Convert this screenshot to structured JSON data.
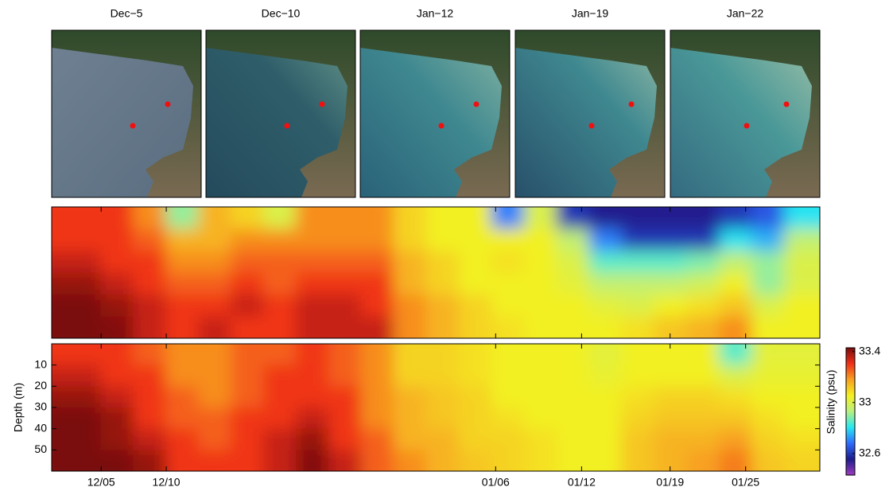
{
  "chart_data": {
    "type": "heatmap",
    "image_titles": [
      "Dec−5",
      "Dec−10",
      "Jan−12",
      "Jan−19",
      "Jan−22"
    ],
    "x": [
      0,
      2.5,
      5,
      7.5,
      10,
      12.5,
      15,
      17.5,
      20,
      22.5,
      25,
      27.5,
      30,
      32.5,
      35,
      37.5,
      40,
      42.5,
      45,
      47.5,
      50,
      52.5,
      55,
      57.5
    ],
    "xlim": [
      0,
      59
    ],
    "xticks": [
      {
        "value": 3.8,
        "label": "12/05"
      },
      {
        "value": 8.8,
        "label": "12/10"
      },
      {
        "value": 34.1,
        "label": "01/06"
      },
      {
        "value": 40.7,
        "label": "01/12"
      },
      {
        "value": 47.5,
        "label": "01/19"
      },
      {
        "value": 53.3,
        "label": "01/25"
      }
    ],
    "clim": [
      32.43,
      33.43
    ],
    "colormap": [
      "#a03cc0",
      "#1c1c8c",
      "#2f6cff",
      "#27e8f0",
      "#b8f080",
      "#f4f020",
      "#f8a020",
      "#f03018",
      "#7a0c0c"
    ],
    "colorbar_ticks": [
      33.4,
      33,
      32.6
    ],
    "colorbar_label": "Salinity (psu)",
    "panels": [
      {
        "values": [
          [
            33.3,
            33.3,
            33.35,
            33.4,
            33.45,
            33.45
          ],
          [
            33.3,
            33.3,
            33.35,
            33.4,
            33.45,
            33.45
          ],
          [
            33.3,
            33.3,
            33.3,
            33.35,
            33.4,
            33.42
          ],
          [
            33.2,
            33.25,
            33.3,
            33.3,
            33.35,
            33.35
          ],
          [
            32.9,
            33.15,
            33.2,
            33.25,
            33.3,
            33.3
          ],
          [
            33.15,
            33.15,
            33.2,
            33.25,
            33.3,
            33.35
          ],
          [
            33.1,
            33.2,
            33.25,
            33.3,
            33.35,
            33.3
          ],
          [
            33.0,
            33.2,
            33.25,
            33.25,
            33.3,
            33.3
          ],
          [
            33.2,
            33.2,
            33.25,
            33.3,
            33.35,
            33.35
          ],
          [
            33.2,
            33.2,
            33.25,
            33.3,
            33.35,
            33.35
          ],
          [
            33.2,
            33.2,
            33.25,
            33.3,
            33.3,
            33.35
          ],
          [
            33.1,
            33.1,
            33.15,
            33.15,
            33.2,
            33.2
          ],
          [
            33.05,
            33.05,
            33.1,
            33.1,
            33.15,
            33.15
          ],
          [
            33.05,
            33.05,
            33.05,
            33.05,
            33.1,
            33.1
          ],
          [
            32.7,
            33.05,
            33.08,
            33.05,
            33.05,
            33.08
          ],
          [
            33.0,
            33.05,
            33.05,
            33.05,
            33.05,
            33.05
          ],
          [
            32.6,
            32.95,
            33.0,
            33.02,
            33.05,
            33.05
          ],
          [
            32.55,
            32.7,
            32.85,
            32.95,
            33.02,
            33.05
          ],
          [
            32.55,
            32.6,
            32.85,
            32.95,
            33.0,
            33.08
          ],
          [
            32.55,
            32.6,
            32.85,
            32.95,
            33.05,
            33.12
          ],
          [
            32.55,
            32.6,
            32.88,
            32.98,
            33.08,
            33.15
          ],
          [
            32.6,
            32.8,
            32.95,
            33.05,
            33.12,
            33.2
          ],
          [
            32.65,
            32.75,
            32.9,
            32.9,
            33.0,
            33.05
          ],
          [
            32.8,
            32.95,
            33.0,
            33.0,
            33.05,
            33.05
          ]
        ]
      },
      {
        "y": [
          5,
          15,
          25,
          35,
          45,
          55
        ],
        "ylim": [
          0,
          60
        ],
        "yticks": [
          10,
          20,
          30,
          40,
          50
        ],
        "ylabel": "Depth (m)",
        "values": [
          [
            33.3,
            33.35,
            33.4,
            33.45,
            33.45,
            33.45
          ],
          [
            33.3,
            33.35,
            33.4,
            33.45,
            33.45,
            33.45
          ],
          [
            33.3,
            33.3,
            33.35,
            33.4,
            33.4,
            33.45
          ],
          [
            33.25,
            33.3,
            33.3,
            33.3,
            33.35,
            33.4
          ],
          [
            33.2,
            33.2,
            33.25,
            33.25,
            33.3,
            33.3
          ],
          [
            33.2,
            33.2,
            33.2,
            33.25,
            33.25,
            33.3
          ],
          [
            33.25,
            33.25,
            33.25,
            33.3,
            33.3,
            33.3
          ],
          [
            33.25,
            33.3,
            33.3,
            33.3,
            33.35,
            33.35
          ],
          [
            33.3,
            33.3,
            33.3,
            33.35,
            33.4,
            33.42
          ],
          [
            33.25,
            33.25,
            33.3,
            33.3,
            33.3,
            33.35
          ],
          [
            33.2,
            33.2,
            33.2,
            33.2,
            33.25,
            33.25
          ],
          [
            33.1,
            33.1,
            33.15,
            33.15,
            33.15,
            33.2
          ],
          [
            33.1,
            33.1,
            33.12,
            33.12,
            33.15,
            33.15
          ],
          [
            33.08,
            33.08,
            33.1,
            33.1,
            33.1,
            33.12
          ],
          [
            33.05,
            33.05,
            33.05,
            33.08,
            33.1,
            33.1
          ],
          [
            33.05,
            33.05,
            33.05,
            33.05,
            33.08,
            33.08
          ],
          [
            33.05,
            33.05,
            33.05,
            33.05,
            33.05,
            33.05
          ],
          [
            33.02,
            33.03,
            33.05,
            33.05,
            33.05,
            33.05
          ],
          [
            33.05,
            33.05,
            33.08,
            33.1,
            33.12,
            33.12
          ],
          [
            33.05,
            33.05,
            33.1,
            33.12,
            33.15,
            33.15
          ],
          [
            33.05,
            33.05,
            33.1,
            33.12,
            33.15,
            33.18
          ],
          [
            32.85,
            33.0,
            33.08,
            33.12,
            33.18,
            33.22
          ],
          [
            33.02,
            33.03,
            33.05,
            33.08,
            33.1,
            33.12
          ],
          [
            33.02,
            33.03,
            33.05,
            33.05,
            33.08,
            33.1
          ]
        ]
      }
    ]
  }
}
